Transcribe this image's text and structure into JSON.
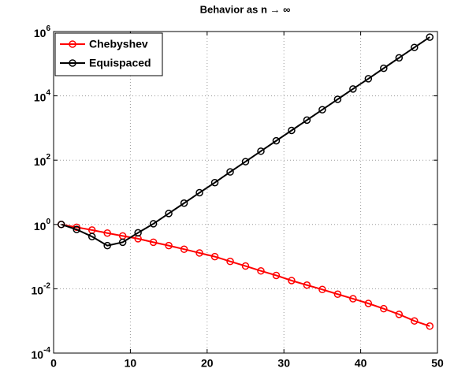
{
  "chart_data": {
    "type": "line",
    "title": "Behavior as n → ∞",
    "x": [
      1,
      3,
      5,
      7,
      9,
      11,
      13,
      15,
      17,
      19,
      21,
      23,
      25,
      27,
      29,
      31,
      33,
      35,
      37,
      39,
      41,
      43,
      45,
      47,
      49
    ],
    "series": [
      {
        "name": "Chebyshev",
        "color": "#ff0000",
        "values": [
          1,
          0.82,
          0.67,
          0.54,
          0.44,
          0.36,
          0.28,
          0.22,
          0.17,
          0.13,
          0.1,
          0.071,
          0.051,
          0.036,
          0.026,
          0.018,
          0.013,
          0.0095,
          0.0068,
          0.0049,
          0.0035,
          0.0024,
          0.0016,
          0.001,
          0.00069
        ]
      },
      {
        "name": "Equispaced",
        "color": "#000000",
        "values": [
          1,
          0.7,
          0.42,
          0.22,
          0.28,
          0.55,
          1.05,
          2.2,
          4.6,
          9.7,
          20,
          43,
          90,
          190,
          400,
          840,
          1760,
          3700,
          7800,
          16400,
          34000,
          72000,
          152000,
          320000,
          670000
        ]
      }
    ],
    "xlim": [
      0,
      50
    ],
    "xticks": [
      0,
      10,
      20,
      30,
      40,
      50
    ],
    "ylim": [
      0.0001,
      1000000
    ],
    "yticks": [
      {
        "value": 0.0001,
        "label": "10^-4"
      },
      {
        "value": 0.01,
        "label": "10^-2"
      },
      {
        "value": 1,
        "label": "10^0"
      },
      {
        "value": 100,
        "label": "10^2"
      },
      {
        "value": 10000,
        "label": "10^4"
      },
      {
        "value": 1000000,
        "label": "10^6"
      }
    ],
    "yscale": "log",
    "grid": true,
    "legend": "upper left"
  }
}
